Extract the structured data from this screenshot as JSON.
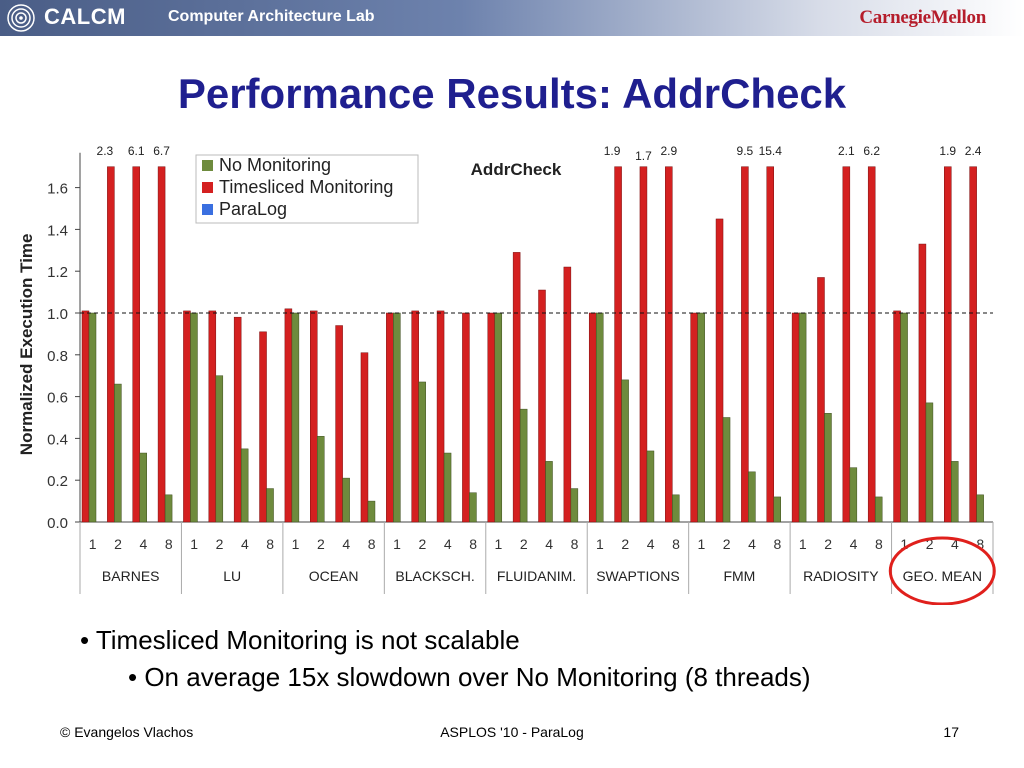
{
  "header": {
    "logo_text": "CALCM",
    "lab_name": "Computer Architecture Lab",
    "university": "CarnegieMellon"
  },
  "slide": {
    "title": "Performance Results: AddrCheck"
  },
  "bullets": [
    "• Timesliced Monitoring is not scalable",
    "• On average 15x slowdown over No Monitoring (8 threads)"
  ],
  "footer": {
    "left": "© Evangelos Vlachos",
    "center": "ASPLOS '10 - ParaLog",
    "right": "17"
  },
  "colors": {
    "no_monitoring": "#6e8b3d",
    "timesliced": "#d42020",
    "paralog": "#3a6fe0",
    "title": "#1f1f8f",
    "highlight_circle": "#e0201c"
  },
  "chart_data": {
    "type": "bar",
    "title": "AddrCheck",
    "ylabel": "Normalized Execution Time",
    "ylim": [
      0,
      1.7
    ],
    "yticks": [
      "0.0",
      "0.2",
      "0.4",
      "0.6",
      "0.8",
      "1.0",
      "1.2",
      "1.4",
      "1.6"
    ],
    "reference_line": 1.0,
    "legend": [
      "No Monitoring",
      "Timesliced Monitoring",
      "ParaLog"
    ],
    "legend_position": "top-left",
    "thread_counts": [
      "1",
      "2",
      "4",
      "8"
    ],
    "groups": [
      {
        "name": "BARNES",
        "timesliced": [
          1.01,
          2.3,
          6.1,
          6.7
        ],
        "no_monitoring": [
          1.0,
          0.66,
          0.33,
          0.13
        ],
        "labels": [
          "",
          "2.3",
          "6.1",
          "6.7"
        ]
      },
      {
        "name": "LU",
        "timesliced": [
          1.01,
          1.01,
          0.98,
          0.91
        ],
        "no_monitoring": [
          1.0,
          0.7,
          0.35,
          0.16
        ],
        "labels": [
          "",
          "",
          "",
          ""
        ]
      },
      {
        "name": "OCEAN",
        "timesliced": [
          1.02,
          1.01,
          0.94,
          0.81
        ],
        "no_monitoring": [
          1.0,
          0.41,
          0.21,
          0.1
        ],
        "labels": [
          "",
          "",
          "",
          ""
        ]
      },
      {
        "name": "BLACKSCH.",
        "timesliced": [
          1.0,
          1.01,
          1.01,
          1.0
        ],
        "no_monitoring": [
          1.0,
          0.67,
          0.33,
          0.14
        ],
        "labels": [
          "",
          "",
          "",
          ""
        ]
      },
      {
        "name": "FLUIDANIM.",
        "timesliced": [
          1.0,
          1.29,
          1.11,
          1.22
        ],
        "no_monitoring": [
          1.0,
          0.54,
          0.29,
          0.16
        ],
        "labels": [
          "",
          "",
          "",
          ""
        ]
      },
      {
        "name": "SWAPTIONS",
        "timesliced": [
          1.0,
          1.9,
          1.7,
          2.9
        ],
        "no_monitoring": [
          1.0,
          0.68,
          0.34,
          0.13
        ],
        "labels": [
          "",
          "1.9",
          "1.7",
          "2.9"
        ]
      },
      {
        "name": "FMM",
        "timesliced": [
          1.0,
          1.45,
          9.5,
          15.4
        ],
        "no_monitoring": [
          1.0,
          0.5,
          0.24,
          0.12
        ],
        "labels": [
          "",
          "",
          "9.5",
          "15.4"
        ]
      },
      {
        "name": "RADIOSITY",
        "timesliced": [
          1.0,
          1.17,
          2.1,
          6.2
        ],
        "no_monitoring": [
          1.0,
          0.52,
          0.26,
          0.12
        ],
        "labels": [
          "",
          "",
          "2.1",
          "6.2"
        ]
      },
      {
        "name": "GEO. MEAN",
        "timesliced": [
          1.01,
          1.33,
          1.9,
          2.4
        ],
        "no_monitoring": [
          1.0,
          0.57,
          0.29,
          0.13
        ],
        "labels": [
          "",
          "",
          "1.9",
          "2.4"
        ]
      }
    ]
  }
}
